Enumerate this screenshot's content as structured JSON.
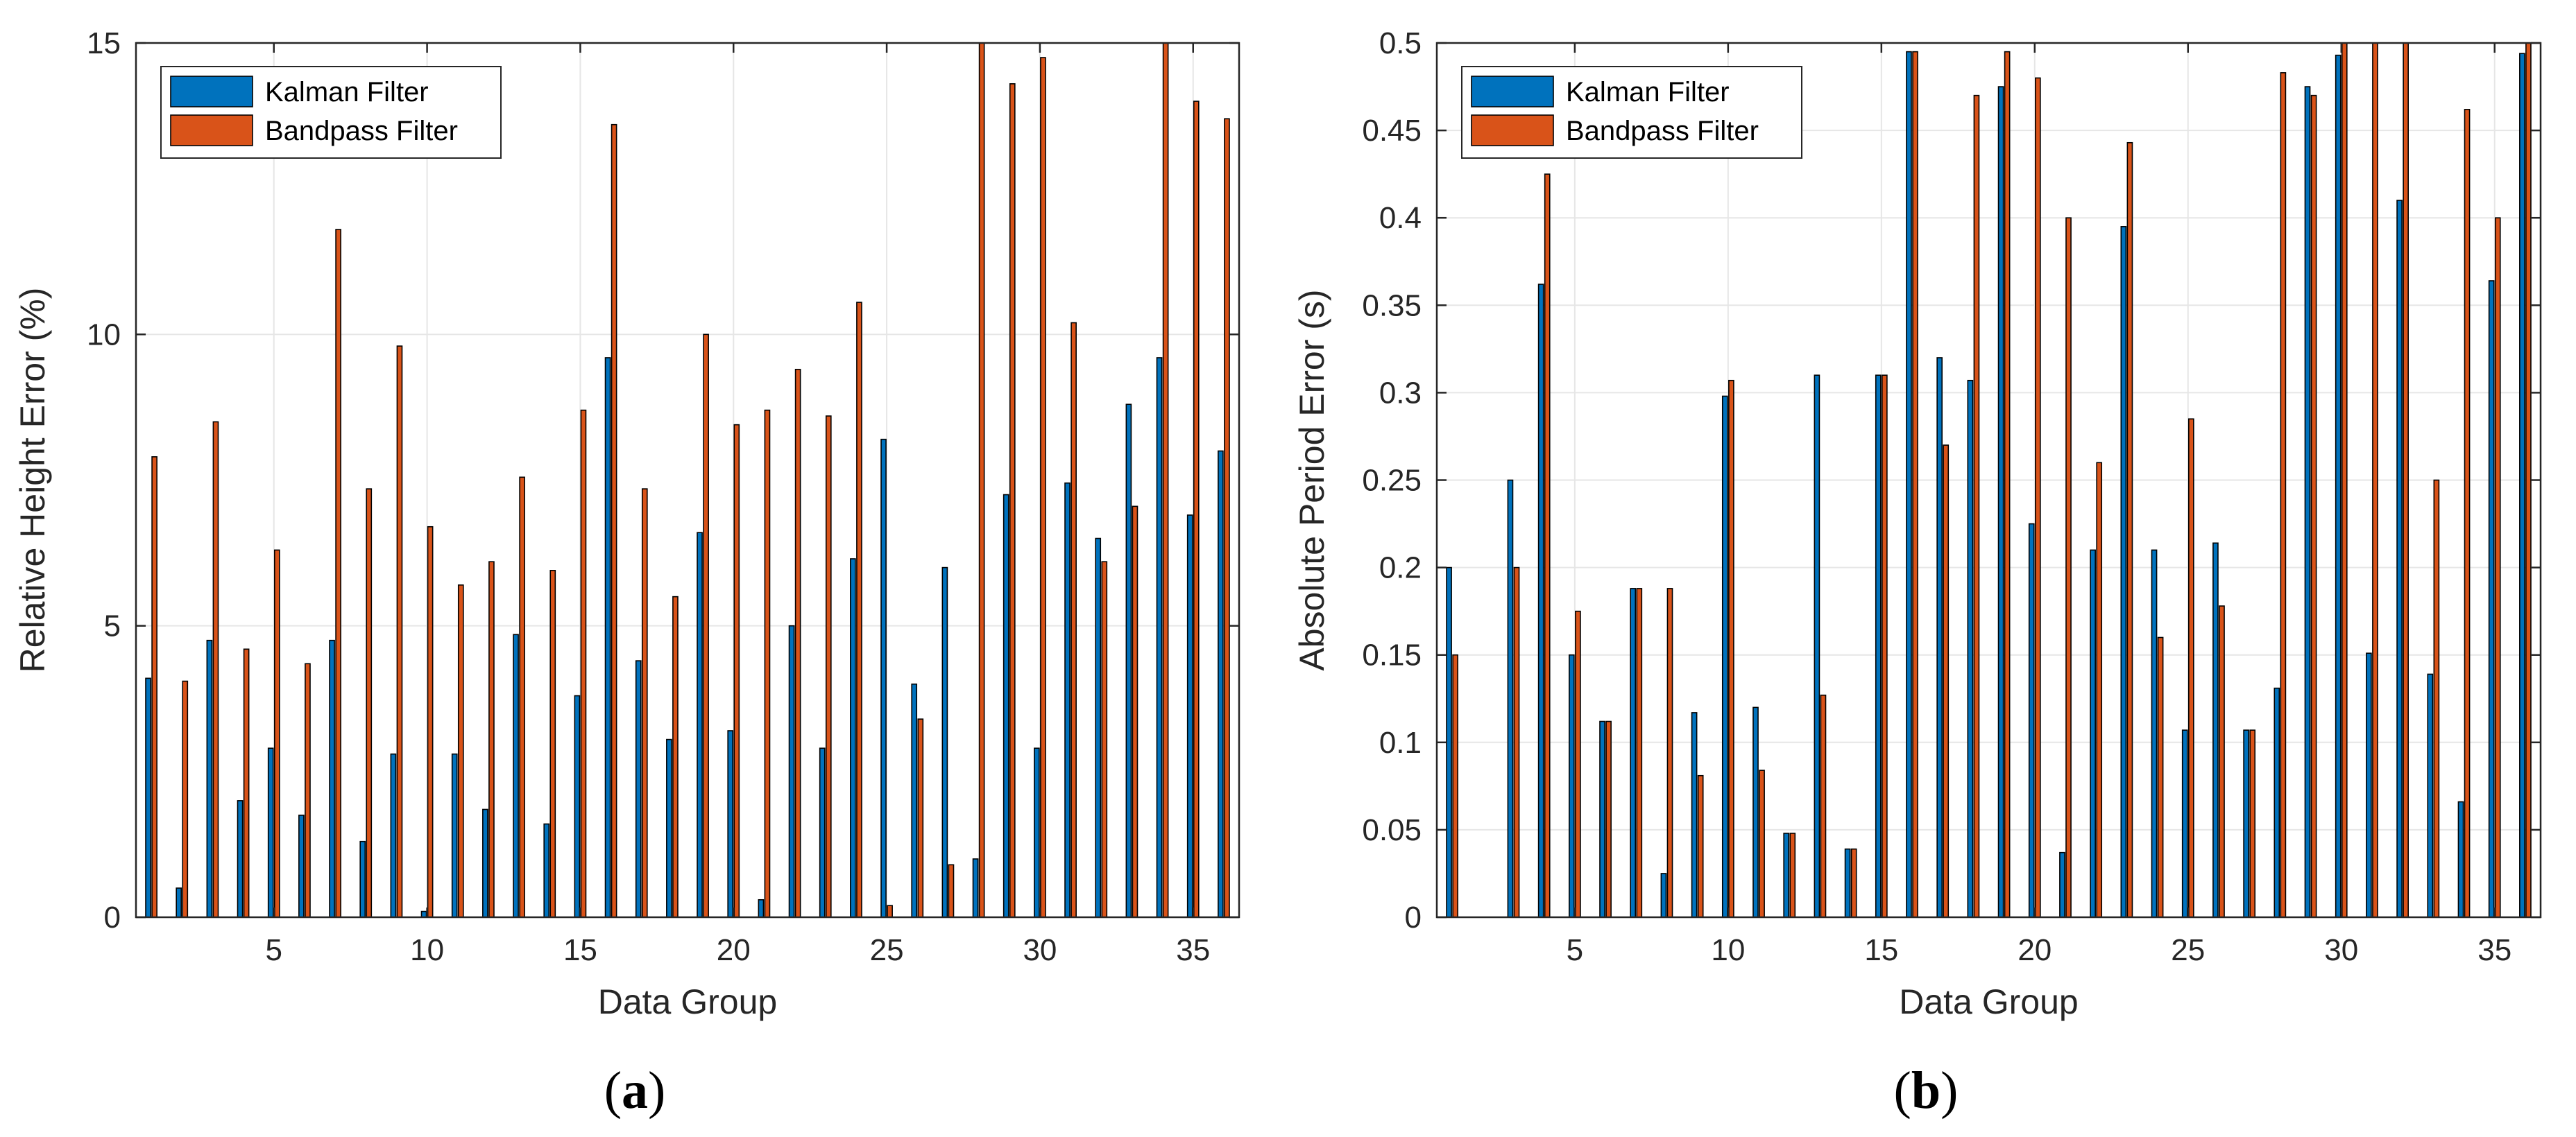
{
  "colors": {
    "kalman": "#0072BD",
    "bandpass": "#D95319",
    "grid": "#e6e6e6",
    "axis": "#262626"
  },
  "chart_data": [
    {
      "type": "bar",
      "panel_label": "a",
      "xlabel": "Data Group",
      "ylabel": "Relative Height Error (%)",
      "xlim": [
        0.5,
        36.5
      ],
      "ylim": [
        0,
        15
      ],
      "xticks": [
        5,
        10,
        15,
        20,
        25,
        30,
        35
      ],
      "yticks": [
        0,
        5,
        10,
        15
      ],
      "grid": true,
      "legend_position": "top-left",
      "categories": [
        1,
        2,
        3,
        4,
        5,
        6,
        7,
        8,
        9,
        10,
        11,
        12,
        13,
        14,
        15,
        16,
        17,
        18,
        19,
        20,
        21,
        22,
        23,
        24,
        25,
        26,
        27,
        28,
        29,
        30,
        31,
        32,
        33,
        34,
        35,
        36
      ],
      "series": [
        {
          "name": "Kalman Filter",
          "color": "#0072BD",
          "values": [
            4.1,
            0.5,
            4.75,
            2.0,
            2.9,
            1.75,
            4.75,
            1.3,
            2.8,
            0.1,
            2.8,
            1.85,
            4.85,
            1.6,
            3.8,
            9.6,
            4.4,
            3.05,
            6.6,
            3.2,
            0.3,
            5.0,
            2.9,
            6.15,
            8.2,
            4.0,
            6.0,
            1.0,
            7.25,
            2.9,
            7.45,
            6.5,
            8.8,
            9.6,
            6.9,
            8.0
          ]
        },
        {
          "name": "Bandpass Filter",
          "color": "#D95319",
          "values": [
            7.9,
            4.05,
            8.5,
            4.6,
            6.3,
            4.35,
            11.8,
            7.35,
            9.8,
            6.7,
            5.7,
            6.1,
            7.55,
            5.95,
            8.7,
            13.6,
            7.35,
            5.5,
            10.0,
            8.45,
            8.7,
            9.4,
            8.6,
            10.55,
            0.2,
            3.4,
            0.9,
            15.0,
            14.3,
            14.75,
            10.2,
            6.1,
            7.05,
            15.0,
            14.0,
            13.7
          ]
        }
      ]
    },
    {
      "type": "bar",
      "panel_label": "b",
      "xlabel": "Data Group",
      "ylabel": "Absolute Period Error (s)",
      "xlim": [
        0.5,
        36.5
      ],
      "ylim": [
        0,
        0.5
      ],
      "xticks": [
        5,
        10,
        15,
        20,
        25,
        30,
        35
      ],
      "yticks": [
        0,
        0.05,
        0.1,
        0.15,
        0.2,
        0.25,
        0.3,
        0.35,
        0.4,
        0.45,
        0.5
      ],
      "grid": true,
      "legend_position": "top-left",
      "categories": [
        1,
        2,
        3,
        4,
        5,
        6,
        7,
        8,
        9,
        10,
        11,
        12,
        13,
        14,
        15,
        16,
        17,
        18,
        19,
        20,
        21,
        22,
        23,
        24,
        25,
        26,
        27,
        28,
        29,
        30,
        31,
        32,
        33,
        34,
        35,
        36
      ],
      "series": [
        {
          "name": "Kalman Filter",
          "color": "#0072BD",
          "values": [
            0.2,
            0.0,
            0.25,
            0.362,
            0.15,
            0.112,
            0.188,
            0.025,
            0.117,
            0.298,
            0.12,
            0.048,
            0.31,
            0.039,
            0.31,
            0.495,
            0.32,
            0.307,
            0.475,
            0.225,
            0.037,
            0.21,
            0.395,
            0.21,
            0.107,
            0.214,
            0.107,
            0.131,
            0.475,
            0.493,
            0.151,
            0.41,
            0.139,
            0.066,
            0.364,
            0.494
          ]
        },
        {
          "name": "Bandpass Filter",
          "color": "#D95319",
          "values": [
            0.15,
            0.0,
            0.2,
            0.425,
            0.175,
            0.112,
            0.188,
            0.188,
            0.081,
            0.307,
            0.084,
            0.048,
            0.127,
            0.039,
            0.31,
            0.495,
            0.27,
            0.47,
            0.495,
            0.48,
            0.4,
            0.26,
            0.443,
            0.16,
            0.285,
            0.178,
            0.107,
            0.483,
            0.47,
            0.5,
            0.5,
            0.5,
            0.25,
            0.462,
            0.4,
            0.5
          ]
        }
      ]
    }
  ]
}
